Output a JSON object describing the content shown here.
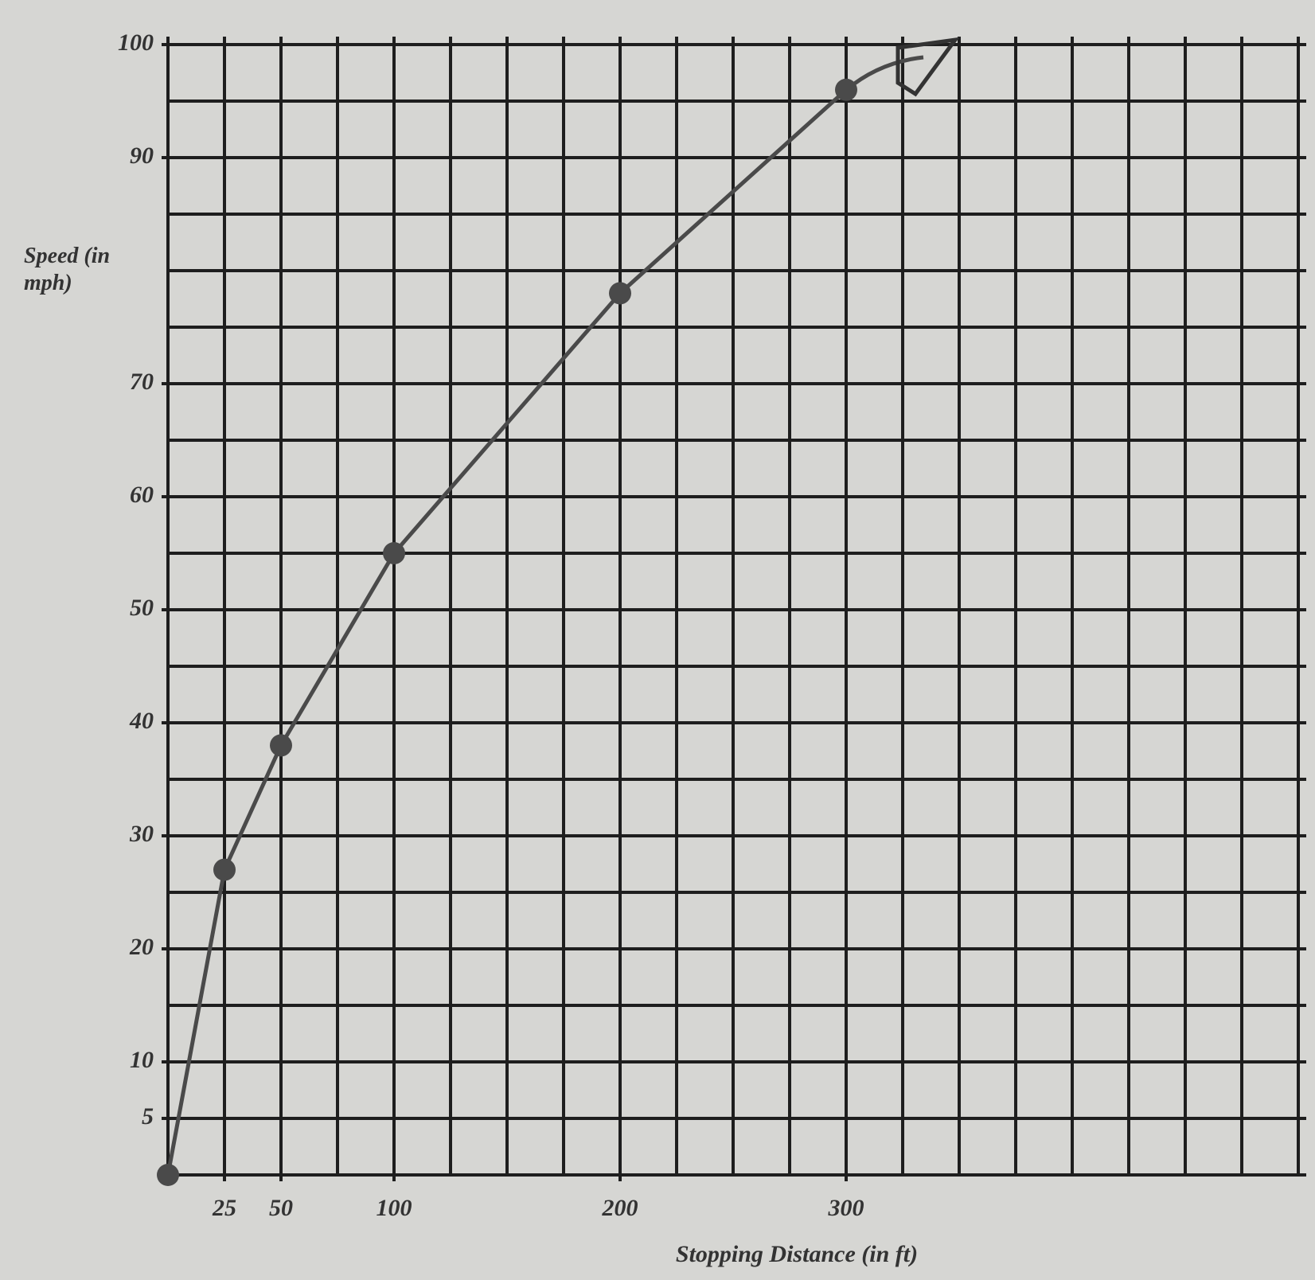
{
  "chart_data": {
    "type": "line",
    "x_label": "Stopping Distance (in ft)",
    "y_label": "Speed (in mph)",
    "x": [
      0,
      25,
      50,
      100,
      200,
      300
    ],
    "series": [
      {
        "color": "#4a4a4a",
        "values": [
          0,
          27,
          38,
          55,
          78,
          96
        ]
      }
    ],
    "xlim": [
      0,
      500
    ],
    "xticks": [
      25,
      50,
      100,
      200,
      300
    ],
    "ylim": [
      0,
      100
    ],
    "yticks": [
      5,
      10,
      20,
      30,
      40,
      50,
      60,
      70,
      90,
      100
    ],
    "grid": true
  }
}
